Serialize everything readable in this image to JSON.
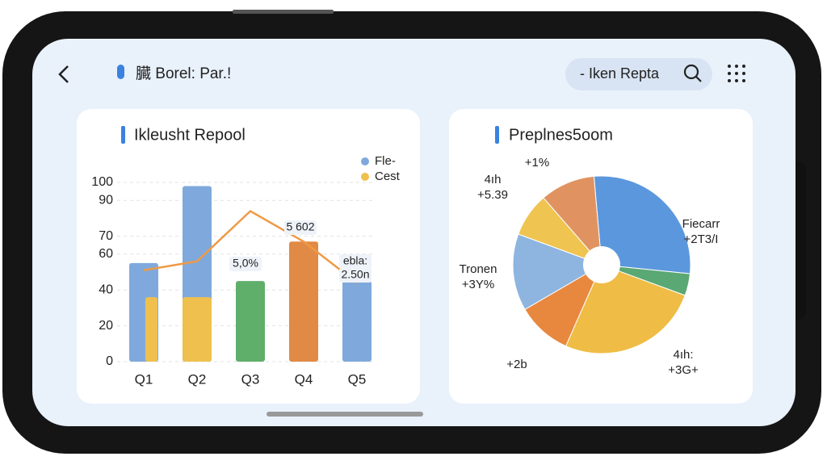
{
  "header": {
    "title": "臓 Borel: Par.!",
    "search": "- Iken Repta"
  },
  "chart_data": [
    {
      "type": "bar",
      "title": "Ikleusht Repool",
      "categories": [
        "Q1",
        "Q2",
        "Q3",
        "Q4",
        "Q5"
      ],
      "series": [
        {
          "name": "Fle-",
          "color": "#7fa9dc",
          "colors": [
            "#7fa9dc",
            "#7fa9dc",
            "#5fae6a",
            "#e08a45",
            "#7fa9dc"
          ],
          "values": [
            55,
            98,
            45,
            67,
            45
          ]
        },
        {
          "name": "Cest",
          "color": "#efc04d",
          "values": [
            36,
            36,
            null,
            null,
            null
          ]
        }
      ],
      "line": {
        "color": "#ee9a45",
        "values": [
          51,
          56,
          84,
          67,
          44
        ]
      },
      "annotations": [
        "5,0%",
        "5 602",
        "ebla:",
        "2.50n"
      ],
      "ylim": [
        0,
        100
      ],
      "yticks": [
        100,
        90,
        70,
        60,
        40,
        20,
        0
      ],
      "grid": true
    },
    {
      "type": "pie",
      "title": "Preplnes5oom",
      "categories": [
        "Fiecarr",
        null,
        "4ıh:",
        null,
        "Tronen",
        "4ıh",
        null
      ],
      "notes": [
        "+2T3/I",
        null,
        "+3G+",
        "+2b",
        "+3Y%",
        "+5.39",
        "+1%"
      ],
      "values": [
        28,
        4,
        26,
        10,
        14,
        8,
        10
      ],
      "colors": [
        "#5b97dd",
        "#5aa873",
        "#efbd45",
        "#e8883f",
        "#8db5e0",
        "#efc450",
        "#e09360"
      ]
    }
  ]
}
